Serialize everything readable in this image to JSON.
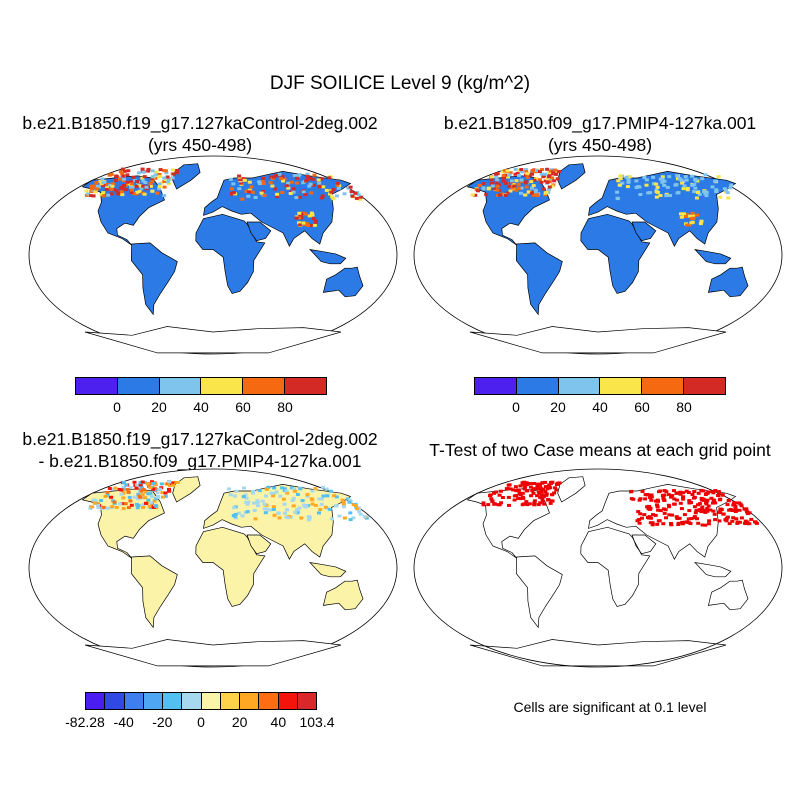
{
  "title": "DJF SOILICE Level 9 (kg/m^2)",
  "chart_data": [
    {
      "type": "heatmap",
      "title_line1": "b.e21.B1850.f19_g17.127kaControl-2deg.002",
      "title_line2": "(yrs 450-498)",
      "colorbar": {
        "colors": [
          "#4d20f0",
          "#2b7ae5",
          "#7fc4ec",
          "#fae54a",
          "#f56a10",
          "#d42a26"
        ],
        "tick_labels": [
          "0",
          "20",
          "40",
          "60",
          "80"
        ]
      }
    },
    {
      "type": "heatmap",
      "title_line1": "b.e21.B1850.f09_g17.PMIP4-127ka.001",
      "title_line2": "(yrs 450-498)",
      "colorbar": {
        "colors": [
          "#4d20f0",
          "#2b7ae5",
          "#7fc4ec",
          "#fae54a",
          "#f56a10",
          "#d42a26"
        ],
        "tick_labels": [
          "0",
          "20",
          "40",
          "60",
          "80"
        ]
      }
    },
    {
      "type": "heatmap",
      "title_line1": "b.e21.B1850.f19_g17.127kaControl-2deg.002",
      "title_line2": "- b.e21.B1850.f09_g17.PMIP4-127ka.001",
      "colorbar": {
        "colors": [
          "#4a1ef0",
          "#2f48e6",
          "#3d7ff0",
          "#4fa6f2",
          "#52c0f0",
          "#a6d8ee",
          "#fbf3a8",
          "#ffd24a",
          "#ffa823",
          "#ff6d12",
          "#f4140c",
          "#d8282a"
        ],
        "tick_labels": [
          "-82.28",
          "-40",
          "-20",
          "0",
          "20",
          "40",
          "103.4"
        ]
      }
    },
    {
      "type": "heatmap",
      "title": "T-Test of two Case means at each grid point",
      "note": "Cells are significant at 0.1 level",
      "significant_color": "#ee0000"
    }
  ]
}
